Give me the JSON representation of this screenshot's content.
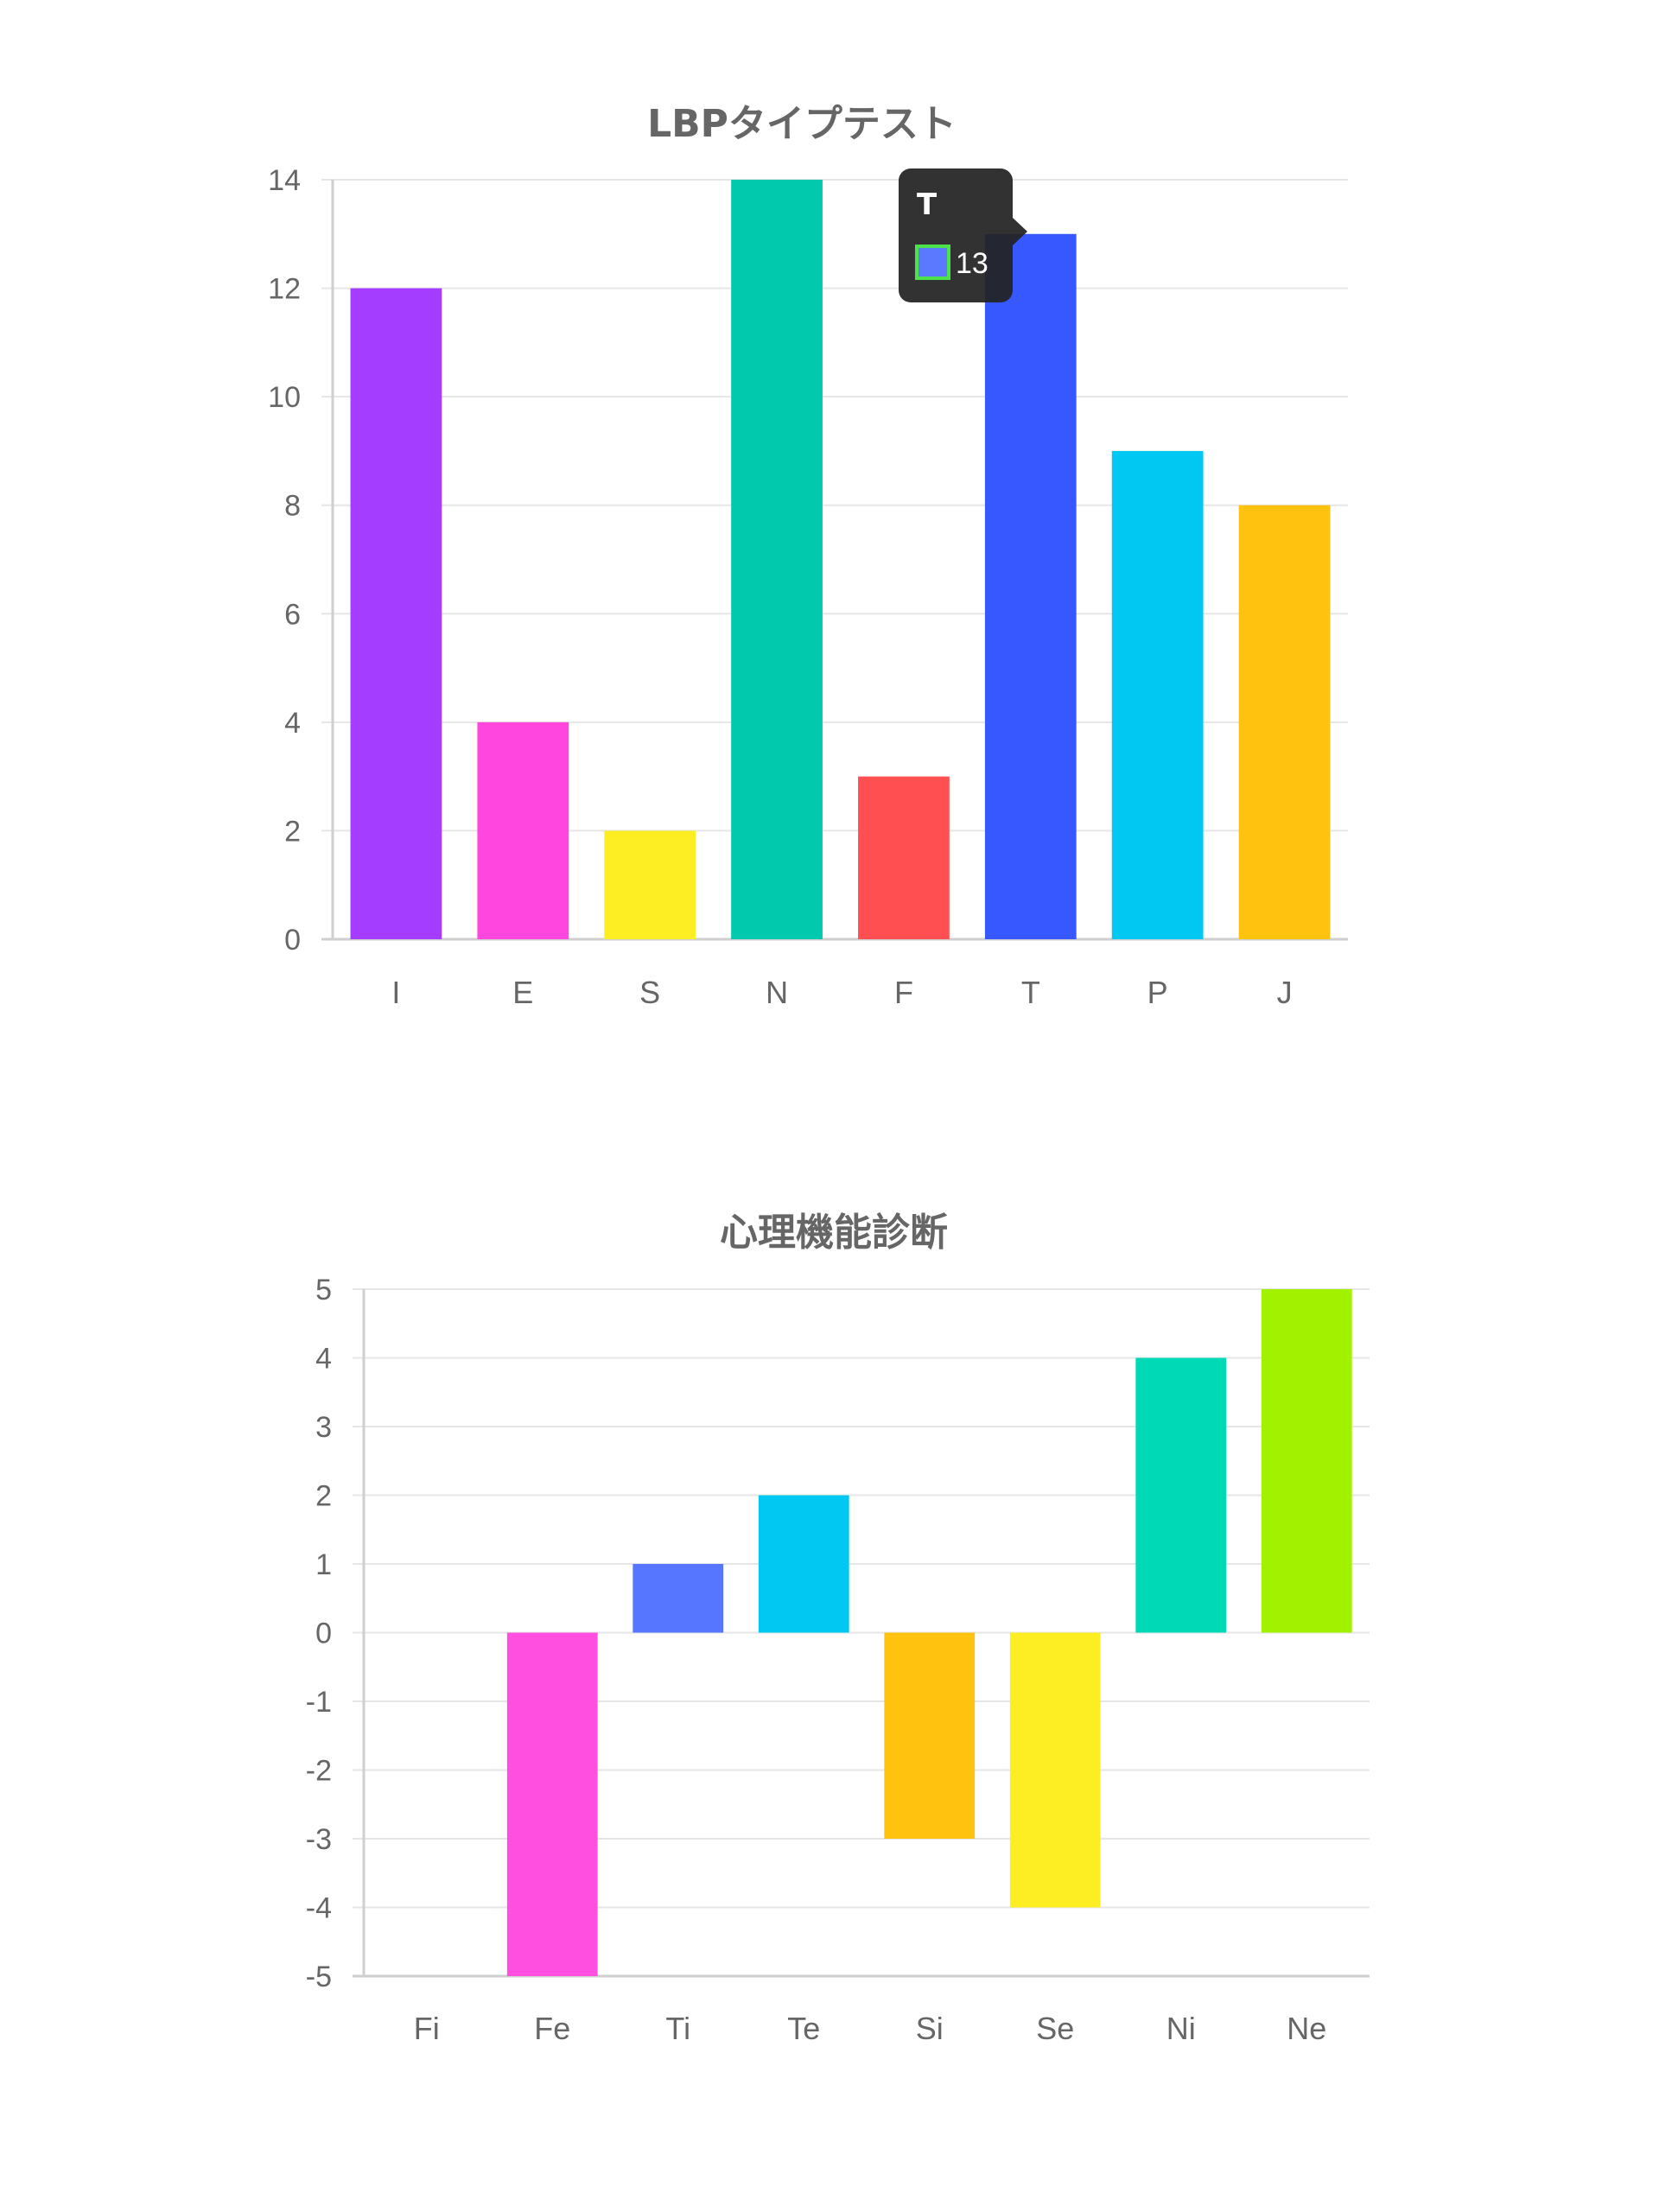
{
  "chart_data": [
    {
      "type": "bar",
      "title": "LBPタイプテスト",
      "categories": [
        "I",
        "E",
        "S",
        "N",
        "F",
        "T",
        "P",
        "J"
      ],
      "values": [
        12,
        4,
        2,
        14,
        3,
        13,
        9,
        8
      ],
      "colors": [
        "#a43dff",
        "#ff47e0",
        "#fdee24",
        "#00c9ae",
        "#ff4f51",
        "#3758ff",
        "#00c8f2",
        "#ffc20f"
      ],
      "ylim": [
        0,
        14
      ],
      "yticks": [
        "14",
        "12",
        "10",
        "8",
        "6",
        "4",
        "2",
        "0"
      ],
      "grid": true,
      "tooltip": {
        "category": "T",
        "value": "13",
        "swatch_color": "#5b79ff",
        "border_color": "#4be24b"
      }
    },
    {
      "type": "bar",
      "title": "心理機能診断",
      "categories": [
        "Fi",
        "Fe",
        "Ti",
        "Te",
        "Si",
        "Se",
        "Ni",
        "Ne"
      ],
      "values": [
        0,
        -5,
        1,
        2,
        -3,
        -4,
        4,
        5
      ],
      "colors": [
        "#a43dff",
        "#ff4fe0",
        "#5776ff",
        "#00c8f2",
        "#ffc20f",
        "#fdee24",
        "#00d9b6",
        "#a2f200"
      ],
      "ylim": [
        -5,
        5
      ],
      "yticks": [
        "5",
        "4",
        "3",
        "2",
        "1",
        "0",
        "-1",
        "-2",
        "-3",
        "-4",
        "-5"
      ],
      "grid": true
    }
  ]
}
